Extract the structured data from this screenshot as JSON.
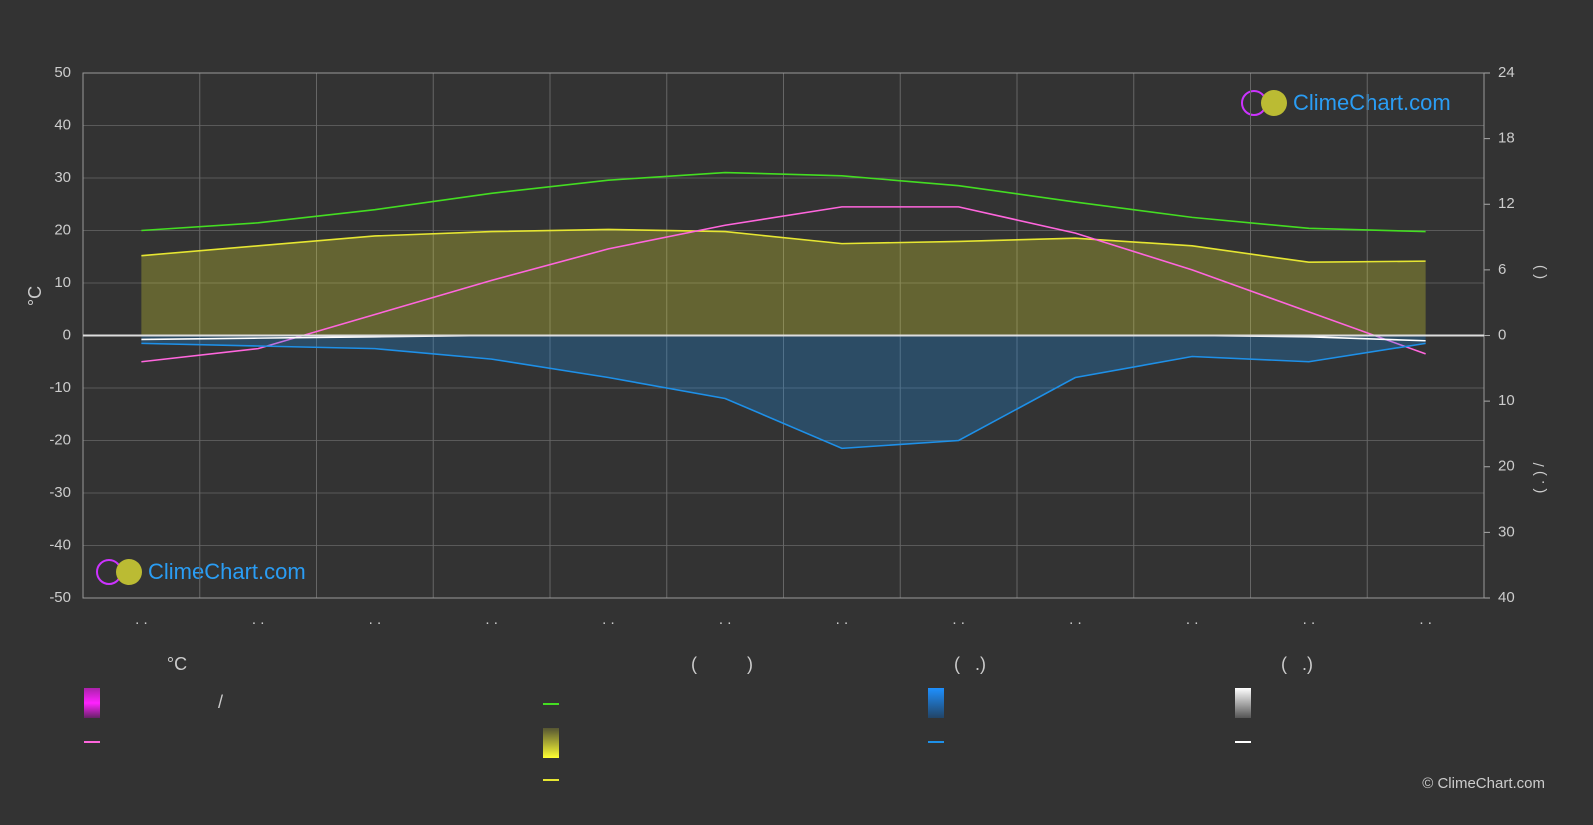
{
  "chart_data": {
    "type": "line",
    "ylabel": "°C",
    "y2label": "(      )",
    "y3label": "(  .  )    /",
    "categories": [
      ". .",
      ". .",
      ". .",
      ". .",
      ". .",
      ". .",
      ". .",
      ". .",
      ". .",
      ". .",
      ". .",
      ". ."
    ],
    "ylim": [
      -50,
      50
    ],
    "yticks": [
      -50,
      -40,
      -30,
      -20,
      -10,
      0,
      10,
      20,
      30,
      40,
      50
    ],
    "y2lim": [
      0,
      24
    ],
    "y2ticks": [
      0,
      6,
      12,
      18,
      24
    ],
    "y3lim": [
      0,
      40
    ],
    "y3ticks": [
      10,
      20,
      30,
      40
    ],
    "grid": true,
    "series": [
      {
        "color": "#44dd22",
        "axis": "y2",
        "values": [
          9.6,
          10.3,
          11.5,
          13,
          14.2,
          14.9,
          14.6,
          13.7,
          12.2,
          10.8,
          9.8,
          9.5
        ]
      },
      {
        "color": "#e6e632",
        "axis": "y2",
        "fill_area": true,
        "values": [
          7.3,
          8.2,
          9.1,
          9.5,
          9.7,
          9.5,
          8.4,
          8.6,
          8.9,
          8.2,
          6.7,
          6.8
        ]
      },
      {
        "color": "#ff66dd",
        "axis": "y",
        "values": [
          -5,
          -2.5,
          4,
          10.5,
          16.5,
          21,
          24.5,
          24.5,
          19.5,
          12.5,
          4.5,
          -3.5
        ]
      },
      {
        "color": "#1e90e8",
        "axis": "y3",
        "fill_area": true,
        "values": [
          1.2,
          1.6,
          2,
          3.6,
          6.4,
          9.6,
          17.2,
          16,
          6.4,
          3.2,
          4,
          1.2
        ]
      },
      {
        "color": "#ffffff",
        "axis": "y3",
        "values": [
          0.6,
          0.4,
          0.2,
          0,
          0,
          0,
          0,
          0,
          0,
          0,
          0.2,
          0.8
        ]
      }
    ],
    "logo_text": "ClimeChart.com",
    "copyright": "© ClimeChart.com",
    "legend": {
      "headers": [
        "°C",
        "(          )",
        "(   .)",
        "(   .)"
      ],
      "separator": "/"
    }
  }
}
